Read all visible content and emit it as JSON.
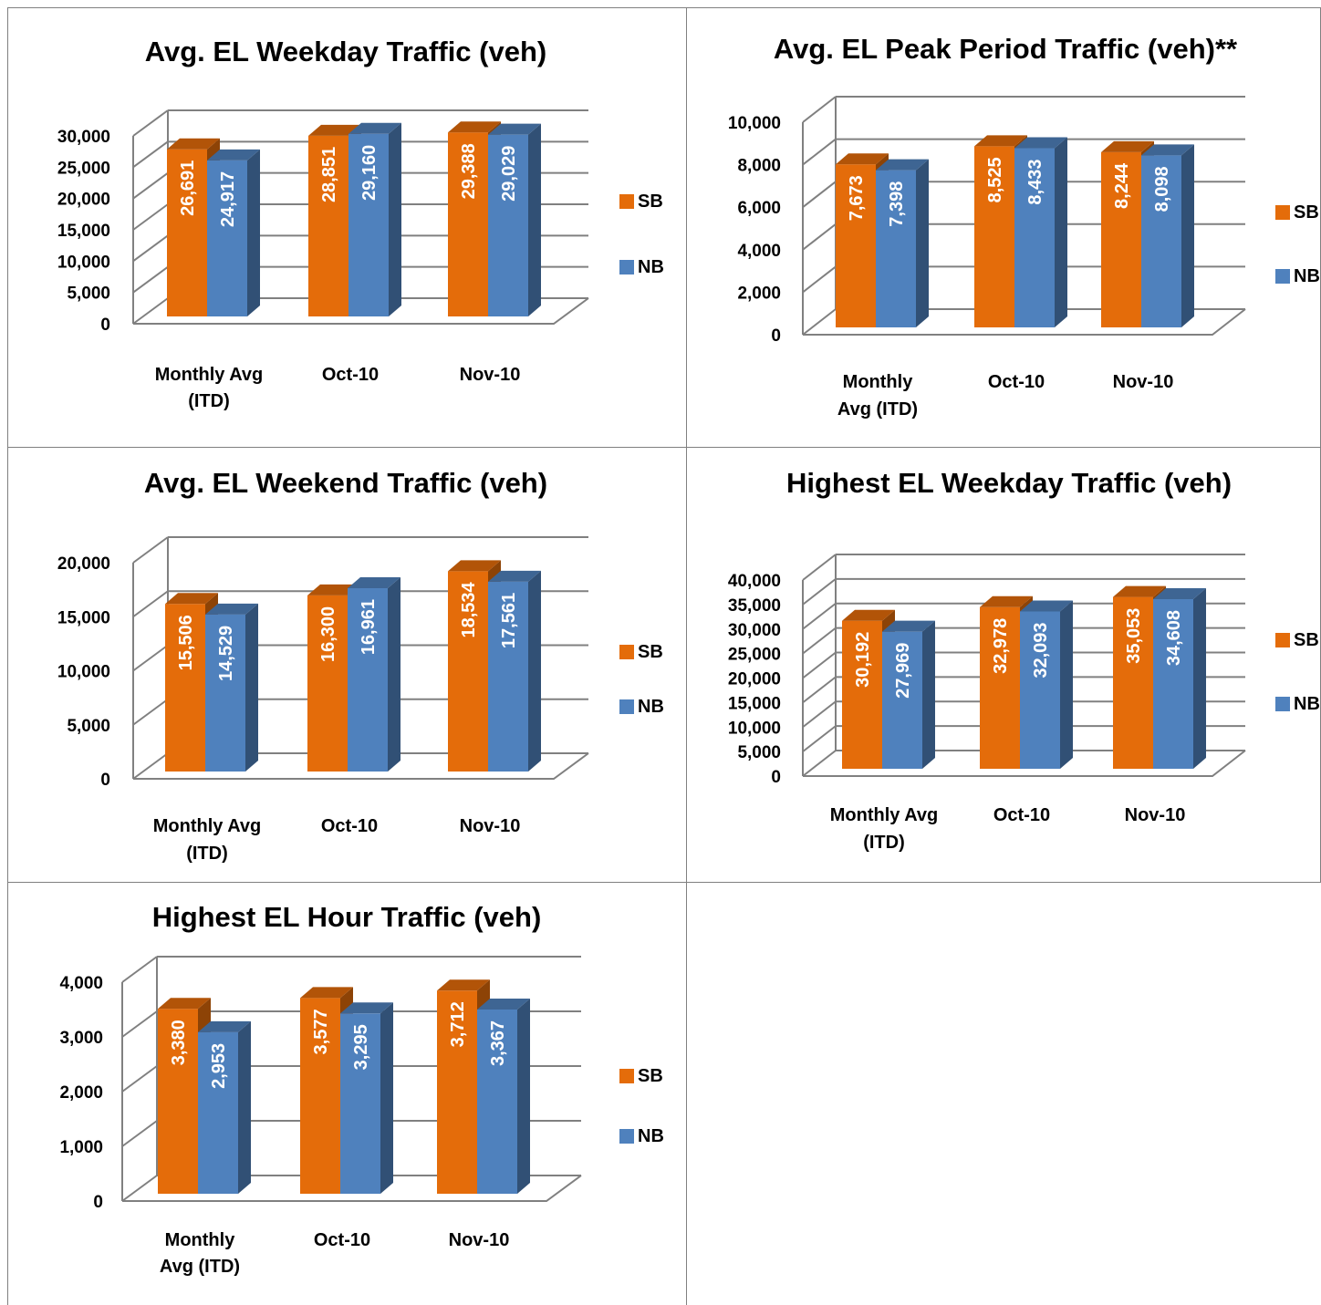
{
  "colors": {
    "SB": "#E46C0A",
    "NB": "#4F81BD",
    "grid": "#808080"
  },
  "chart_data": [
    {
      "type": "bar",
      "title": "Avg. EL Weekday Traffic (veh)",
      "categories": [
        [
          "Monthly Avg",
          "(ITD)"
        ],
        [
          "Oct-10"
        ],
        [
          "Nov-10"
        ]
      ],
      "series": [
        {
          "name": "SB",
          "values": [
            26691,
            28851,
            29388
          ],
          "labels": [
            "26,691",
            "28,851",
            "29,388"
          ]
        },
        {
          "name": "NB",
          "values": [
            24917,
            29160,
            29029
          ],
          "labels": [
            "24,917",
            "29,160",
            "29,029"
          ]
        }
      ],
      "yticks": [
        "0",
        "5,000",
        "10,000",
        "15,000",
        "20,000",
        "25,000",
        "30,000"
      ],
      "ylim": [
        0,
        30000
      ],
      "grid": true,
      "legend": "right"
    },
    {
      "type": "bar",
      "title": "Avg. EL Peak Period Traffic (veh)**",
      "categories": [
        [
          "Monthly",
          "Avg (ITD)"
        ],
        [
          "Oct-10"
        ],
        [
          "Nov-10"
        ]
      ],
      "series": [
        {
          "name": "SB",
          "values": [
            7673,
            8525,
            8244
          ],
          "labels": [
            "7,673",
            "8,525",
            "8,244"
          ]
        },
        {
          "name": "NB",
          "values": [
            7398,
            8433,
            8098
          ],
          "labels": [
            "7,398",
            "8,433",
            "8,098"
          ]
        }
      ],
      "yticks": [
        "0",
        "2,000",
        "4,000",
        "6,000",
        "8,000",
        "10,000"
      ],
      "ylim": [
        0,
        10000
      ],
      "grid": true,
      "legend": "right"
    },
    {
      "type": "bar",
      "title": "Avg. EL Weekend Traffic (veh)",
      "categories": [
        [
          "Monthly Avg",
          "(ITD)"
        ],
        [
          "Oct-10"
        ],
        [
          "Nov-10"
        ]
      ],
      "series": [
        {
          "name": "SB",
          "values": [
            15506,
            16300,
            18534
          ],
          "labels": [
            "15,506",
            "16,300",
            "18,534"
          ]
        },
        {
          "name": "NB",
          "values": [
            14529,
            16961,
            17561
          ],
          "labels": [
            "14,529",
            "16,961",
            "17,561"
          ]
        }
      ],
      "yticks": [
        "0",
        "5,000",
        "10,000",
        "15,000",
        "20,000"
      ],
      "ylim": [
        0,
        20000
      ],
      "grid": true,
      "legend": "right"
    },
    {
      "type": "bar",
      "title": "Highest EL Weekday Traffic (veh)",
      "categories": [
        [
          "Monthly Avg",
          "(ITD)"
        ],
        [
          "Oct-10"
        ],
        [
          "Nov-10"
        ]
      ],
      "series": [
        {
          "name": "SB",
          "values": [
            30192,
            32978,
            35053
          ],
          "labels": [
            "30,192",
            "32,978",
            "35,053"
          ]
        },
        {
          "name": "NB",
          "values": [
            27969,
            32093,
            34608
          ],
          "labels": [
            "27,969",
            "32,093",
            "34,608"
          ]
        }
      ],
      "yticks": [
        "0",
        "5,000",
        "10,000",
        "15,000",
        "20,000",
        "25,000",
        "30,000",
        "35,000",
        "40,000"
      ],
      "ylim": [
        0,
        40000
      ],
      "grid": true,
      "legend": "right"
    },
    {
      "type": "bar",
      "title": "Highest EL Hour Traffic (veh)",
      "categories": [
        [
          "Monthly",
          "Avg (ITD)"
        ],
        [
          "Oct-10"
        ],
        [
          "Nov-10"
        ]
      ],
      "series": [
        {
          "name": "SB",
          "values": [
            3380,
            3577,
            3712
          ],
          "labels": [
            "3,380",
            "3,577",
            "3,712"
          ]
        },
        {
          "name": "NB",
          "values": [
            2953,
            3295,
            3367
          ],
          "labels": [
            "2,953",
            "3,295",
            "3,367"
          ]
        }
      ],
      "yticks": [
        "0",
        "1,000",
        "2,000",
        "3,000",
        "4,000"
      ],
      "ylim": [
        0,
        4000
      ],
      "grid": true,
      "legend": "right"
    }
  ]
}
